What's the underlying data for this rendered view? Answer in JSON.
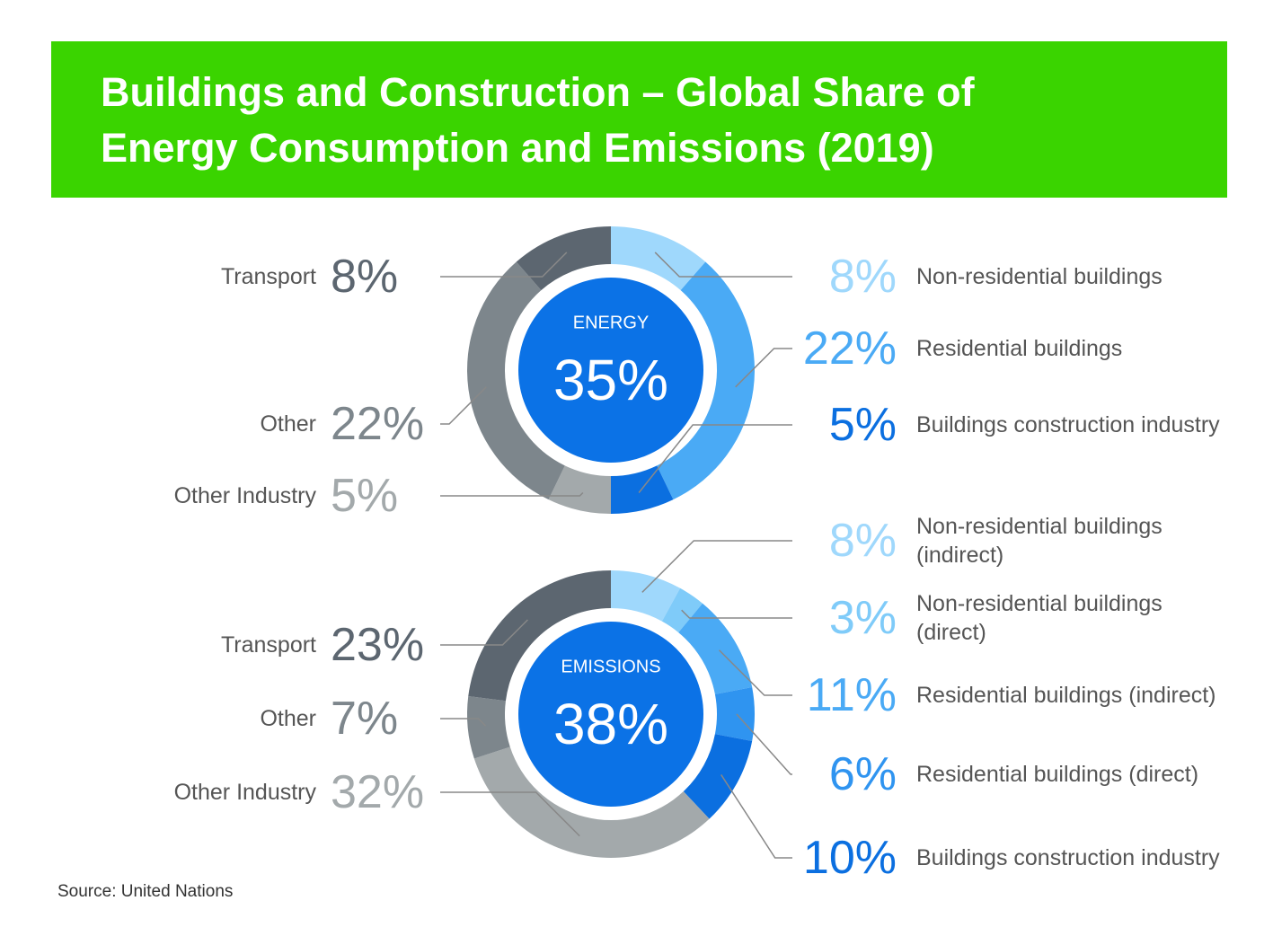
{
  "title": "Buildings and Construction – Global Share of Energy Consumption and Emissions (2019)",
  "source": "Source: United Nations",
  "chart_data": [
    {
      "type": "donut",
      "center_label": "ENERGY",
      "center_value": {
        "value": 35,
        "label": "35%"
      },
      "categories": [
        "Non-residential buildings",
        "Residential buildings",
        "Buildings construction industry",
        "Other Industry",
        "Other",
        "Transport"
      ],
      "values": [
        8,
        22,
        5,
        5,
        22,
        8
      ],
      "value_labels": [
        "8%",
        "22%",
        "5%",
        "5%",
        "22%",
        "8%"
      ],
      "colors": [
        "#9fd8fc",
        "#4aaaf5",
        "#0b6fe0",
        "#a3a9ab",
        "#7d868c",
        "#5c6670"
      ]
    },
    {
      "type": "donut",
      "center_label": "EMISSIONS",
      "center_value": {
        "value": 38,
        "label": "38%"
      },
      "categories": [
        "Non-residential buildings (indirect)",
        "Non-residential buildings (direct)",
        "Residential buildings (indirect)",
        "Residential buildings (direct)",
        "Buildings construction industry",
        "Other Industry",
        "Other",
        "Transport"
      ],
      "values": [
        8,
        3,
        11,
        6,
        10,
        32,
        7,
        23
      ],
      "value_labels": [
        "8%",
        "3%",
        "11%",
        "6%",
        "10%",
        "32%",
        "7%",
        "23%"
      ],
      "colors": [
        "#9fd8fc",
        "#7fcbf9",
        "#4aaaf5",
        "#2f94f0",
        "#0b6fe0",
        "#a3a9ab",
        "#7d868c",
        "#5c6670"
      ]
    }
  ]
}
